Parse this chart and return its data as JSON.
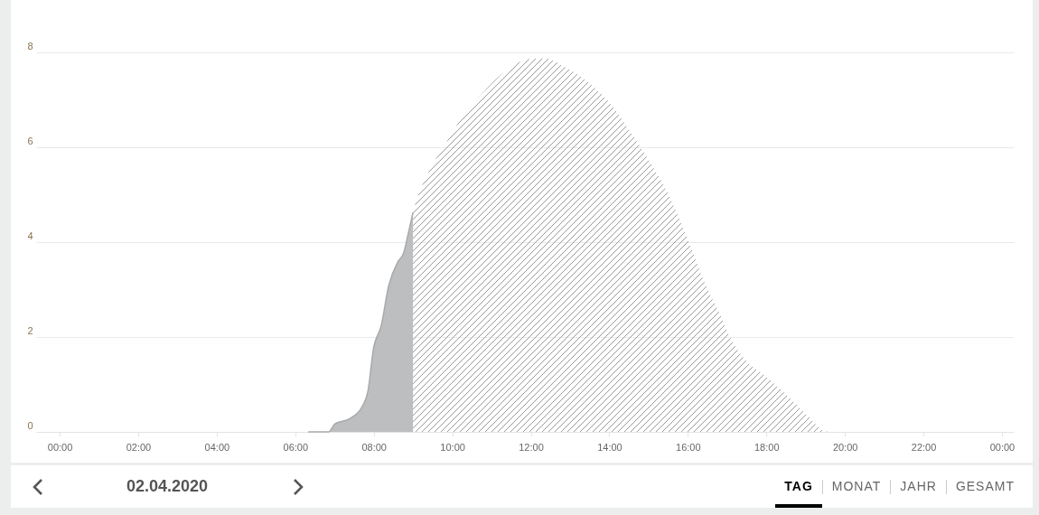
{
  "chart_data": {
    "type": "area",
    "xlim": [
      -0.6,
      24.3
    ],
    "ylim": [
      0,
      8
    ],
    "xticks": [
      {
        "value": 0,
        "label": "00:00"
      },
      {
        "value": 2,
        "label": "02:00"
      },
      {
        "value": 4,
        "label": "04:00"
      },
      {
        "value": 6,
        "label": "06:00"
      },
      {
        "value": 8,
        "label": "08:00"
      },
      {
        "value": 10,
        "label": "10:00"
      },
      {
        "value": 12,
        "label": "12:00"
      },
      {
        "value": 14,
        "label": "14:00"
      },
      {
        "value": 16,
        "label": "16:00"
      },
      {
        "value": 18,
        "label": "18:00"
      },
      {
        "value": 20,
        "label": "20:00"
      },
      {
        "value": 22,
        "label": "22:00"
      },
      {
        "value": 24,
        "label": "00:00"
      }
    ],
    "yticks": [
      0,
      2,
      4,
      6,
      8
    ],
    "grid": "y",
    "series": [
      {
        "color": "#bdbec0",
        "x": [
          6.33,
          6.85,
          7.01,
          7.39,
          7.73,
          7.85,
          7.99,
          8.19,
          8.38,
          8.61,
          8.76,
          8.87,
          9.0
        ],
        "values": [
          0,
          0,
          0.17,
          0.28,
          0.57,
          0.85,
          1.74,
          2.24,
          3.08,
          3.58,
          3.77,
          4.15,
          4.63
        ]
      },
      {
        "color": "#9a9a9a",
        "x": [
          9.0,
          9.1,
          9.48,
          9.86,
          10.24,
          10.77,
          11.53,
          12.06,
          12.36,
          12.89,
          13.43,
          13.96,
          14.49,
          14.94,
          15.48,
          16.01,
          16.46,
          16.84,
          17.07,
          17.37,
          17.98,
          18.59,
          19.12,
          19.42,
          19.65
        ],
        "values": [
          4.66,
          4.91,
          5.61,
          6.12,
          6.63,
          7.14,
          7.71,
          7.87,
          7.87,
          7.68,
          7.39,
          6.98,
          6.38,
          5.81,
          5.05,
          4.03,
          3.08,
          2.44,
          2.0,
          1.61,
          1.17,
          0.72,
          0.28,
          0.04,
          0
        ]
      }
    ],
    "annotations": [
      "02.04.2020",
      "TAG",
      "MONAT",
      "JAHR",
      "GESAMT"
    ]
  }
}
